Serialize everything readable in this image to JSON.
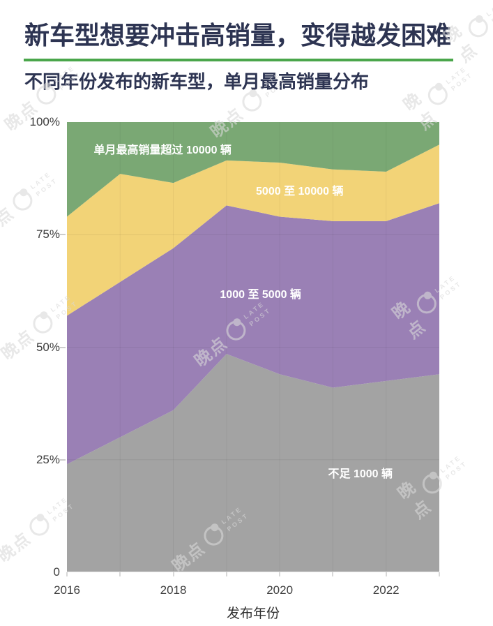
{
  "page": {
    "title": "新车型想要冲击高销量，变得越发困难",
    "subtitle": "不同年份发布的新车型，单月最高销量分布"
  },
  "brand": {
    "cn": "晚点",
    "en_line1": "LATE",
    "en_line2": "POST"
  },
  "colors": {
    "title_text": "#2d3452",
    "header_rule": "#4aa64b",
    "axis_text": "#3f3f3f",
    "watermark": "#d9d9d9",
    "background": "#ffffff"
  },
  "chart_data": {
    "type": "area",
    "stacked": true,
    "percent": true,
    "title": "不同年份发布的新车型，单月最高销量分布",
    "x": [
      2016,
      2017,
      2018,
      2019,
      2020,
      2021,
      2022,
      2023
    ],
    "x_axis": {
      "label": "发布年份",
      "tick_labels": [
        "2016",
        "2018",
        "2020",
        "2022"
      ],
      "tick_years": [
        2016,
        2018,
        2020,
        2022
      ]
    },
    "y_axis": {
      "range": [
        0,
        100
      ],
      "ticks": [
        {
          "label": "0",
          "value": 0
        },
        {
          "label": "25%",
          "value": 25
        },
        {
          "label": "50%",
          "value": 50
        },
        {
          "label": "75%",
          "value": 75
        },
        {
          "label": "100%",
          "value": 100
        }
      ]
    },
    "grid": {
      "horizontal_at": [
        25,
        50,
        75
      ],
      "vertical_at_years": [
        2017,
        2018,
        2019,
        2020,
        2021,
        2022
      ]
    },
    "legend_position": "labels-inside-areas",
    "series": [
      {
        "name": "不足 1000 辆",
        "color": "#a3a3a3",
        "values": [
          24,
          30,
          36,
          48.5,
          44,
          41,
          42.5,
          44
        ],
        "label_pos": {
          "fx": 0.788,
          "fy": 0.778
        }
      },
      {
        "name": "1000 至 5000 辆",
        "color": "#9a80b5",
        "values": [
          33,
          34.5,
          36,
          33,
          35,
          37,
          35.5,
          38
        ],
        "label_pos": {
          "fx": 0.52,
          "fy": 0.38
        }
      },
      {
        "name": "5000 至 10000 辆",
        "color": "#f2d377",
        "values": [
          22,
          24,
          14.5,
          10,
          12,
          11.5,
          11,
          13
        ],
        "label_pos": {
          "fx": 0.625,
          "fy": 0.15
        }
      },
      {
        "name": "单月最高销量超过 10000 辆",
        "color": "#7aa874",
        "values": [
          21,
          11.5,
          13.5,
          8.5,
          9,
          10.5,
          11,
          5
        ],
        "label_pos": {
          "fx": 0.257,
          "fy": 0.059
        }
      }
    ]
  }
}
